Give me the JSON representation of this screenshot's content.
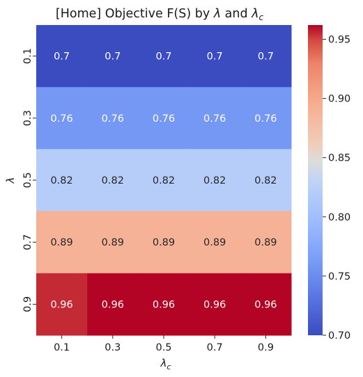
{
  "chart_data": {
    "type": "heatmap",
    "title": {
      "prefix": "[Home] Objective F(S) by ",
      "sym1": "λ",
      "mid": " and ",
      "sym2": "λ",
      "sub2": "c"
    },
    "xlabel": {
      "sym": "λ",
      "sub": "c"
    },
    "ylabel": {
      "sym": "λ"
    },
    "x_categories": [
      "0.1",
      "0.3",
      "0.5",
      "0.7",
      "0.9"
    ],
    "y_categories": [
      "0.1",
      "0.3",
      "0.5",
      "0.7",
      "0.9"
    ],
    "values": [
      [
        0.7,
        0.7,
        0.7,
        0.7,
        0.7
      ],
      [
        0.76,
        0.76,
        0.76,
        0.76,
        0.76
      ],
      [
        0.82,
        0.82,
        0.82,
        0.82,
        0.82
      ],
      [
        0.89,
        0.89,
        0.89,
        0.89,
        0.89
      ],
      [
        0.955,
        0.962,
        0.962,
        0.962,
        0.962
      ]
    ],
    "cell_labels": [
      [
        "0.7",
        "0.7",
        "0.7",
        "0.7",
        "0.7"
      ],
      [
        "0.76",
        "0.76",
        "0.76",
        "0.76",
        "0.76"
      ],
      [
        "0.82",
        "0.82",
        "0.82",
        "0.82",
        "0.82"
      ],
      [
        "0.89",
        "0.89",
        "0.89",
        "0.89",
        "0.89"
      ],
      [
        "0.96",
        "0.96",
        "0.96",
        "0.96",
        "0.96"
      ]
    ],
    "colormap": "coolwarm",
    "colorbar": {
      "range": [
        0.7,
        0.962
      ],
      "ticks": [
        0.7,
        0.75,
        0.8,
        0.85,
        0.9,
        0.95
      ],
      "tick_labels": [
        "0.70",
        "0.75",
        "0.80",
        "0.85",
        "0.90",
        "0.95"
      ]
    }
  }
}
